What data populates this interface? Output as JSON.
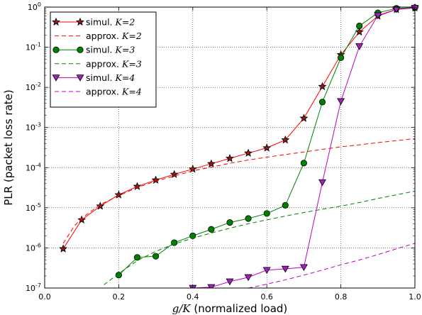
{
  "chart_data": {
    "type": "line",
    "xlabel": "g/K (normalized load)",
    "xlabel_math": "g/K",
    "xlabel_rest": " (normalized load)",
    "ylabel": "PLR (packet loss rate)",
    "xlim": [
      0.0,
      1.0
    ],
    "ylim": [
      1e-07,
      1
    ],
    "yscale": "log",
    "grid": true,
    "legend_position": "top-left",
    "x_ticks": [
      {
        "v": 0.0,
        "label": "0.0"
      },
      {
        "v": 0.2,
        "label": "0.2"
      },
      {
        "v": 0.4,
        "label": "0.4"
      },
      {
        "v": 0.6,
        "label": "0.6"
      },
      {
        "v": 0.8,
        "label": "0.8"
      },
      {
        "v": 1.0,
        "label": "1.0"
      }
    ],
    "y_ticks": [
      {
        "v": 1e-07,
        "base": "10",
        "exp": "-7"
      },
      {
        "v": 1e-06,
        "base": "10",
        "exp": "-6"
      },
      {
        "v": 1e-05,
        "base": "10",
        "exp": "-5"
      },
      {
        "v": 0.0001,
        "base": "10",
        "exp": "-4"
      },
      {
        "v": 0.001,
        "base": "10",
        "exp": "-3"
      },
      {
        "v": 0.01,
        "base": "10",
        "exp": "-2"
      },
      {
        "v": 0.1,
        "base": "10",
        "exp": "-1"
      },
      {
        "v": 1,
        "base": "10",
        "exp": "0"
      }
    ],
    "series": [
      {
        "name": "simul. K = 2",
        "legend_prefix": "simul. ",
        "legend_math": "K=2",
        "style": "solid",
        "color": "#ff0000",
        "marker": "star",
        "marker_fill": "#8b1a1a",
        "x": [
          0.05,
          0.1,
          0.15,
          0.2,
          0.25,
          0.3,
          0.35,
          0.4,
          0.45,
          0.5,
          0.55,
          0.6,
          0.65,
          0.7,
          0.75,
          0.8,
          0.85,
          0.9,
          0.95,
          1.0
        ],
        "y": [
          9.5e-07,
          5e-06,
          1.1e-05,
          2.1e-05,
          3.4e-05,
          4.9e-05,
          6.8e-05,
          9.2e-05,
          0.000125,
          0.00017,
          0.00023,
          0.00031,
          0.00049,
          0.0017,
          0.0105,
          0.065,
          0.24,
          0.6,
          0.87,
          0.96
        ]
      },
      {
        "name": "approx. K = 2",
        "legend_prefix": "approx. ",
        "legend_math": "K=2",
        "style": "dashed",
        "color": "#ff0000",
        "marker": "none",
        "x": [
          0.05,
          0.08,
          0.1,
          0.15,
          0.2,
          0.25,
          0.3,
          0.35,
          0.4,
          0.45,
          0.5,
          0.55,
          0.6,
          0.65,
          0.7,
          0.75,
          0.8,
          0.85,
          0.9,
          0.95,
          1.0
        ],
        "y": [
          1.3e-06,
          3.5e-06,
          5.5e-06,
          1.2e-05,
          2e-05,
          3.2e-05,
          4.6e-05,
          6.2e-05,
          8.3e-05,
          0.000103,
          0.000128,
          0.000155,
          0.000182,
          0.000212,
          0.000245,
          0.000285,
          0.00033,
          0.00037,
          0.00042,
          0.00047,
          0.00053
        ]
      },
      {
        "name": "simul. K = 3",
        "legend_prefix": "simul. ",
        "legend_math": "K=3",
        "style": "solid",
        "color": "#008000",
        "marker": "circle",
        "marker_fill": "#008000",
        "x": [
          0.2,
          0.25,
          0.3,
          0.35,
          0.4,
          0.45,
          0.5,
          0.55,
          0.6,
          0.65,
          0.7,
          0.75,
          0.8,
          0.85,
          0.9,
          0.95,
          1.0
        ],
        "y": [
          2.1e-07,
          5.8e-07,
          6.2e-07,
          1.35e-06,
          2e-06,
          2.9e-06,
          4.3e-06,
          5.4e-06,
          7.2e-06,
          1.15e-05,
          0.00013,
          0.0043,
          0.055,
          0.34,
          0.72,
          0.93,
          0.97
        ]
      },
      {
        "name": "approx. K = 3",
        "legend_prefix": "approx. ",
        "legend_math": "K=3",
        "style": "dashed",
        "color": "#008000",
        "marker": "none",
        "x": [
          0.16,
          0.2,
          0.25,
          0.3,
          0.35,
          0.4,
          0.45,
          0.5,
          0.55,
          0.6,
          0.65,
          0.7,
          0.75,
          0.8,
          0.85,
          0.9,
          0.95,
          1.0
        ],
        "y": [
          1.2e-07,
          2.3e-07,
          4.8e-07,
          8.2e-07,
          1.25e-06,
          1.75e-06,
          2.35e-06,
          3.1e-06,
          4e-06,
          5e-06,
          6.2e-06,
          7.6e-06,
          9.2e-06,
          1.1e-05,
          1.35e-05,
          1.7e-05,
          2.1e-05,
          2.6e-05
        ]
      },
      {
        "name": "simul. K = 4",
        "legend_prefix": "simul. ",
        "legend_math": "K=4",
        "style": "solid",
        "color": "#c000c0",
        "marker": "triangle-down",
        "marker_fill": "#a020c0",
        "x": [
          0.4,
          0.45,
          0.5,
          0.55,
          0.6,
          0.65,
          0.7,
          0.75,
          0.8,
          0.85,
          0.9,
          0.95,
          1.0
        ],
        "y": [
          1e-07,
          1.05e-07,
          1.45e-07,
          1.85e-07,
          2.8e-07,
          3e-07,
          3.3e-07,
          4.3e-05,
          0.0045,
          0.105,
          0.62,
          0.88,
          0.95
        ]
      },
      {
        "name": "approx. K = 4",
        "legend_prefix": "approx. ",
        "legend_math": "K=4",
        "style": "dashed",
        "color": "#c000c0",
        "marker": "none",
        "x": [
          0.55,
          0.6,
          0.65,
          0.7,
          0.75,
          0.8,
          0.85,
          0.9,
          0.95,
          1.0
        ],
        "y": [
          1e-07,
          1.25e-07,
          1.6e-07,
          2.1e-07,
          2.8e-07,
          3.8e-07,
          5e-07,
          6.8e-07,
          9.5e-07,
          1.3e-06
        ]
      }
    ]
  }
}
